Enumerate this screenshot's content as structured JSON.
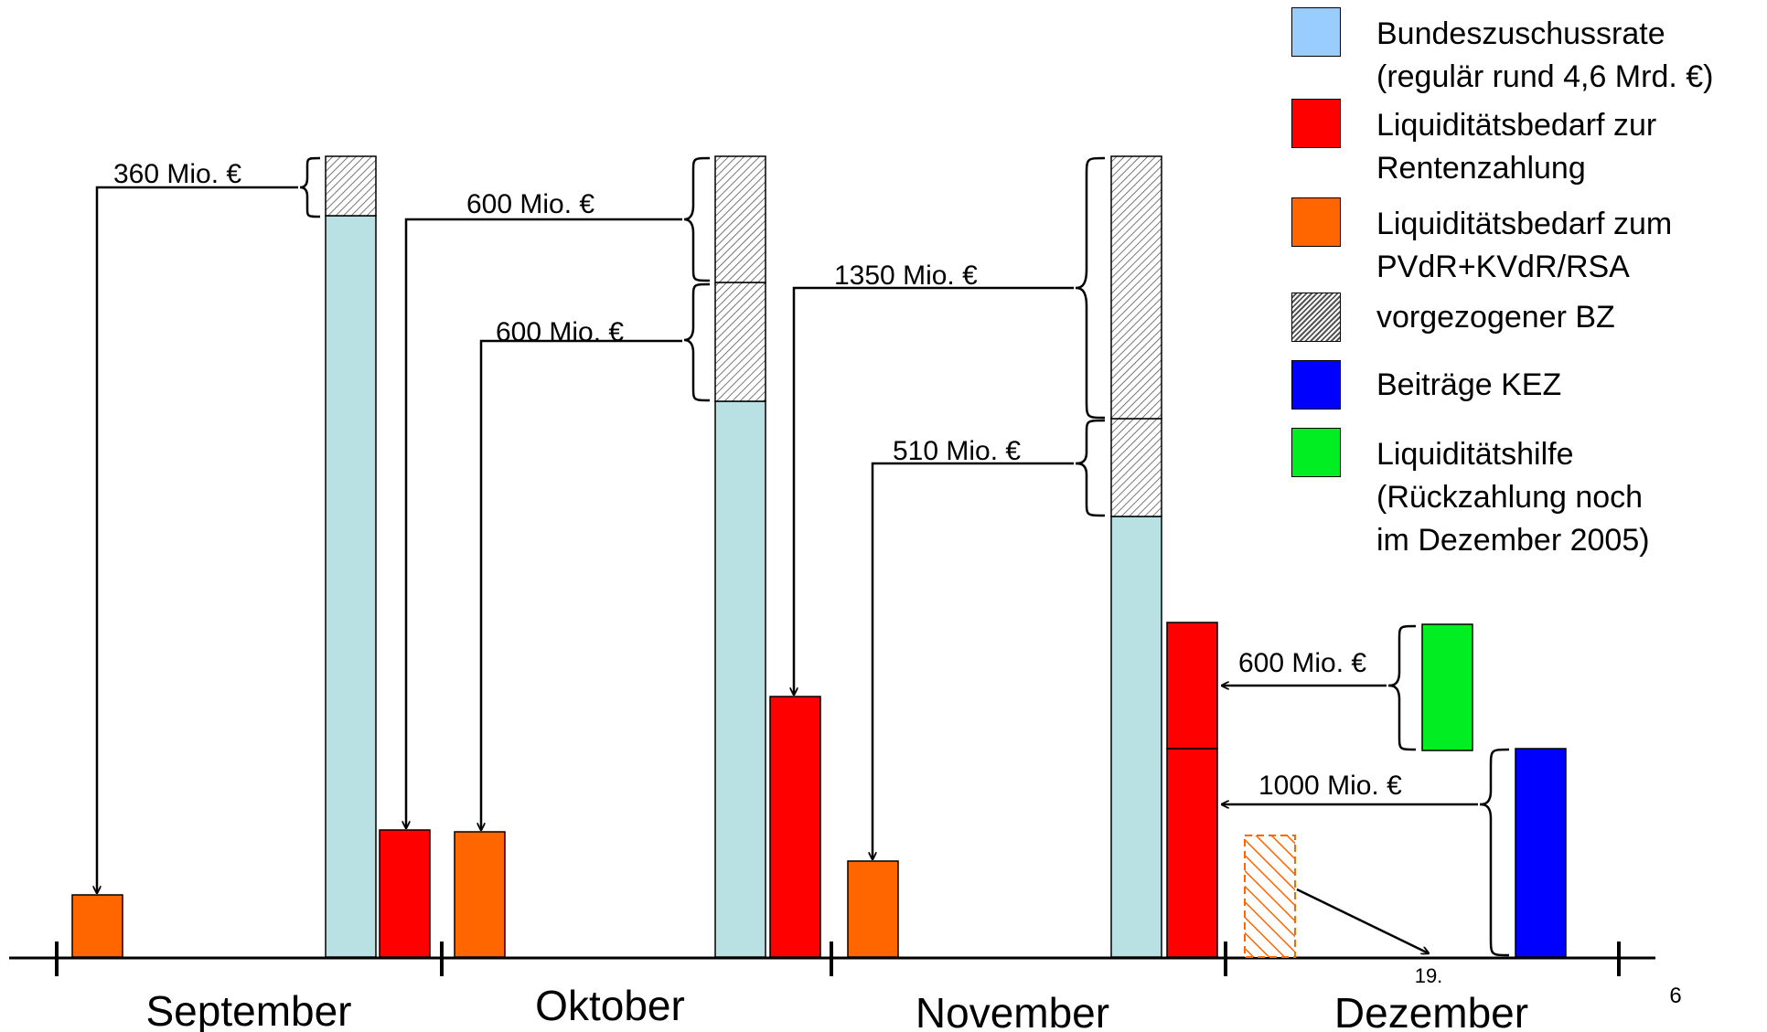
{
  "legend": {
    "items": [
      {
        "id": "bz",
        "lines": [
          "Bundeszuschussrate",
          "(regulär rund 4,6 Mrd. €)"
        ],
        "color": "#99ccff"
      },
      {
        "id": "rente",
        "lines": [
          "Liquiditätsbedarf zur",
          "Rentenzahlung"
        ],
        "color": "#ff0000"
      },
      {
        "id": "pvdr",
        "lines": [
          "Liquiditätsbedarf zum",
          "PVdR+KVdR/RSA"
        ],
        "color": "#ff6600"
      },
      {
        "id": "vbz",
        "lines": [
          "vorgezogener BZ"
        ],
        "color": "hatch-gray"
      },
      {
        "id": "kez",
        "lines": [
          "Beiträge KEZ"
        ],
        "color": "#0000ff"
      },
      {
        "id": "hilfe",
        "lines": [
          "Liquiditätshilfe",
          "(Rückzahlung noch",
          "im Dezember 2005)"
        ],
        "color": "#00ee22"
      }
    ]
  },
  "months": [
    "September",
    "Oktober",
    "November",
    "Dezember"
  ],
  "annotations": {
    "sep_360": "360 Mio. €",
    "okt_600a": "600 Mio. €",
    "okt_600b": "600 Mio. €",
    "nov_1350": "1350 Mio. €",
    "nov_510": "510 Mio. €",
    "dez_600": "600 Mio. €",
    "dez_1000": "1000 Mio. €",
    "dez_19": "19."
  },
  "page_number": "6",
  "colors": {
    "bz_bar": "#b9e0e3",
    "rente": "#ff0000",
    "pvdr": "#ff6600",
    "kez": "#0000ff",
    "hilfe": "#00ee22"
  }
}
